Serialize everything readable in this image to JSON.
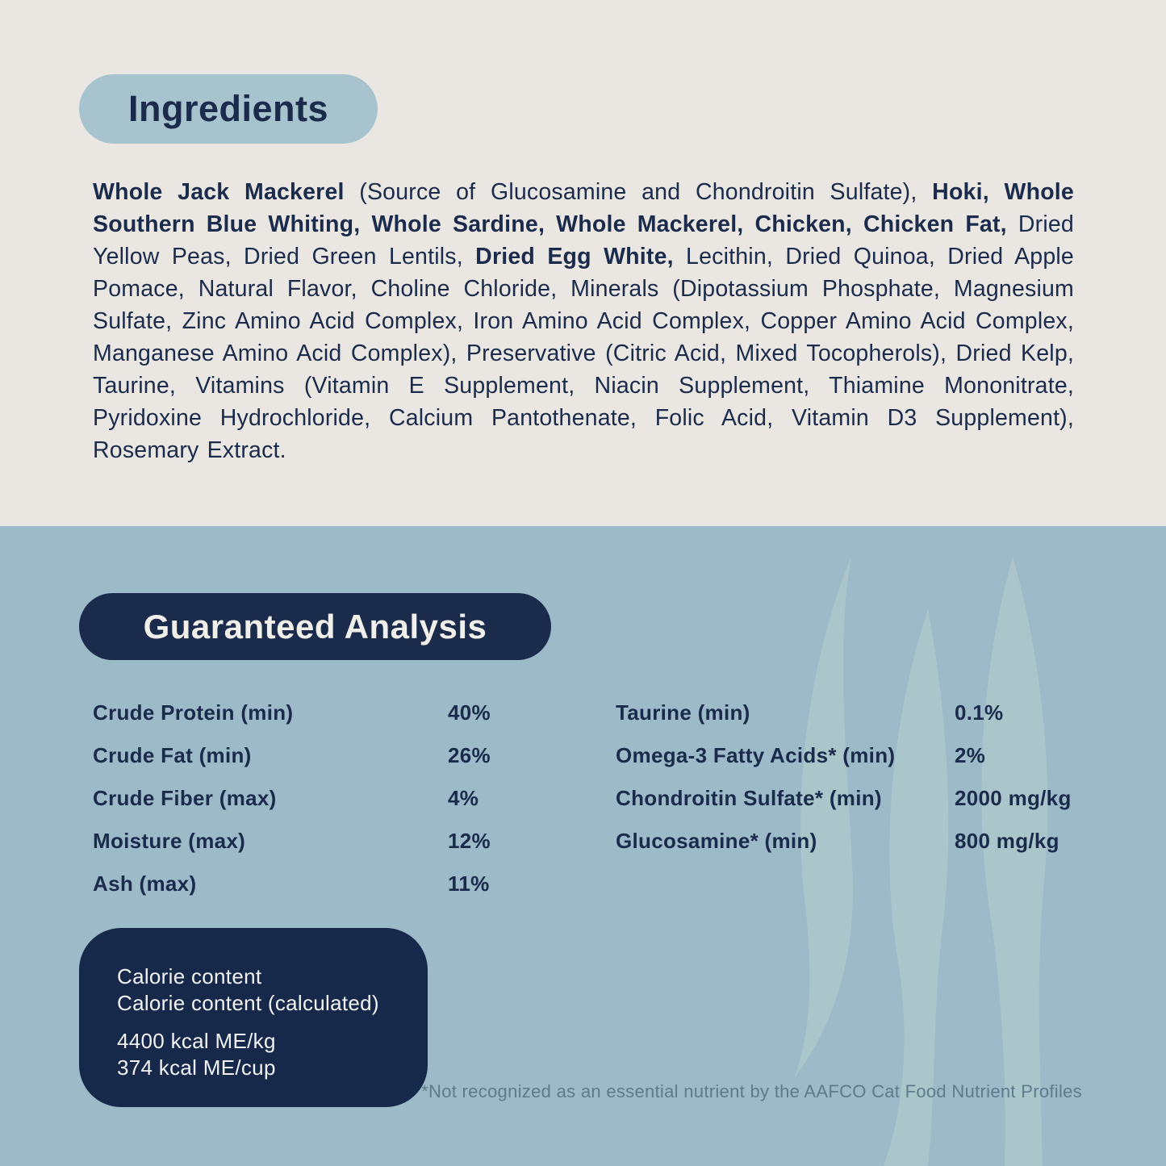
{
  "colors": {
    "top_background": "#EAE7E2",
    "bottom_background": "#9CBAC7",
    "navy": "#1B2B4B",
    "pill_light_blue": "#A6C3CE",
    "calorie_box_navy": "#16294A",
    "light_text": "#F1EFEA",
    "footnote_text": "#5D7B8A",
    "watermark": "#ABC6CB"
  },
  "ingredients": {
    "heading": "Ingredients",
    "segments": [
      {
        "text": "Whole Jack Mackerel",
        "bold": true
      },
      {
        "text": " (Source of Glucosamine and Chondroitin Sulfate), ",
        "bold": false
      },
      {
        "text": "Hoki, Whole Southern Blue Whiting, Whole Sardine, Whole Mackerel, Chicken, Chicken Fat,",
        "bold": true
      },
      {
        "text": " Dried Yellow Peas, Dried Green Lentils, ",
        "bold": false
      },
      {
        "text": "Dried Egg White,",
        "bold": true
      },
      {
        "text": " Lecithin, Dried Quinoa, Dried Apple Pomace, Natural Flavor, Choline Chloride, Minerals (Dipotassium Phosphate, Magnesium Sulfate, Zinc Amino Acid Complex, Iron Amino Acid Complex, Copper Amino Acid Complex, Manganese Amino Acid Complex), Preservative (Citric Acid, Mixed Tocopherols), Dried Kelp, Taurine, Vitamins (Vitamin E Supplement, Niacin Supplement, Thiamine Mononitrate, Pyridoxine Hydrochloride, Calcium Pantothenate, Folic Acid, Vitamin D3 Supplement), Rosemary Extract.",
        "bold": false
      }
    ]
  },
  "guaranteed_analysis": {
    "heading": "Guaranteed Analysis",
    "left_rows": [
      {
        "label": "Crude Protein (min)",
        "value": "40%"
      },
      {
        "label": "Crude Fat (min)",
        "value": "26%"
      },
      {
        "label": "Crude Fiber (max)",
        "value": "4%"
      },
      {
        "label": "Moisture (max)",
        "value": "12%"
      },
      {
        "label": "Ash (max)",
        "value": "11%"
      }
    ],
    "right_rows": [
      {
        "label": "Taurine (min)",
        "value": "0.1%"
      },
      {
        "label": "Omega-3 Fatty Acids* (min)",
        "value": "2%"
      },
      {
        "label": "Chondroitin Sulfate* (min)",
        "value": "2000 mg/kg"
      },
      {
        "label": "Glucosamine* (min)",
        "value": "800 mg/kg"
      }
    ]
  },
  "calorie_box": {
    "line1": "Calorie content",
    "line2": "Calorie content (calculated)",
    "line3": "4400 kcal ME/kg",
    "line4": "374 kcal ME/cup"
  },
  "footnote": "*Not recognized as an essential nutrient by the AAFCO Cat Food Nutrient Profiles"
}
